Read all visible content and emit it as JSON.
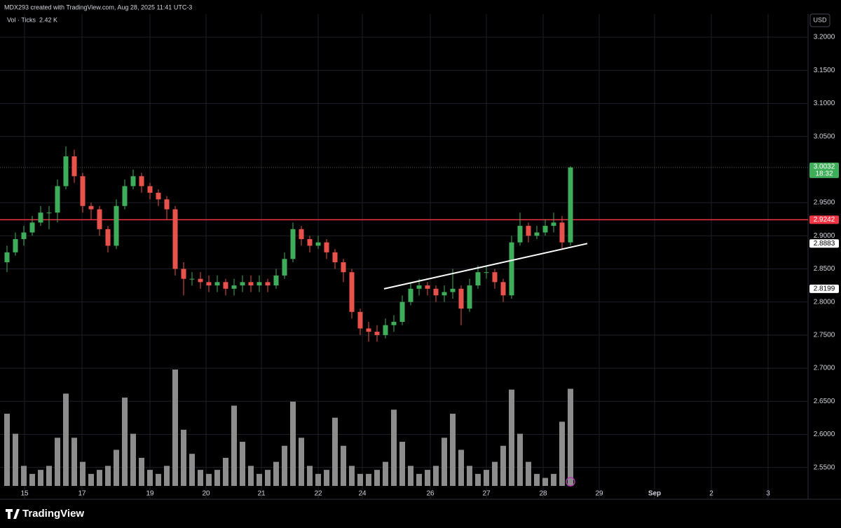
{
  "header": "MDX293 created with TradingView.com, Aug 28, 2025 11:41 UTC-3",
  "logo": "TradingView",
  "chart_data": {
    "type": "candlestick",
    "currency": "USD",
    "up_color": "#3fae5a",
    "down_color": "#e8524a",
    "ylim": [
      2.502,
      3.235
    ],
    "yticks": [
      {
        "value": 2.55,
        "label": "2.5500"
      },
      {
        "value": 2.6,
        "label": "2.6000"
      },
      {
        "value": 2.65,
        "label": "2.6500"
      },
      {
        "value": 2.7,
        "label": "2.7000"
      },
      {
        "value": 2.75,
        "label": "2.7500"
      },
      {
        "value": 2.8,
        "label": "2.8000"
      },
      {
        "value": 2.85,
        "label": "2.8500"
      },
      {
        "value": 2.9,
        "label": "2.9000"
      },
      {
        "value": 2.95,
        "label": "2.9500"
      },
      {
        "value": 3.05,
        "label": "3.0500"
      },
      {
        "value": 3.1,
        "label": "3.1000"
      },
      {
        "value": 3.15,
        "label": "3.1500"
      },
      {
        "value": 3.2,
        "label": "3.2000"
      }
    ],
    "grid": true,
    "x_labels": [
      "15",
      "17",
      "19",
      "20",
      "21",
      "22",
      "24",
      "26",
      "27",
      "28",
      "29",
      "Sep",
      "2",
      "3"
    ],
    "open": [
      2.86,
      2.875,
      2.895,
      2.905,
      2.92,
      2.935,
      2.935,
      2.975,
      3.02,
      2.99,
      2.945,
      2.94,
      2.91,
      2.885,
      2.945,
      2.975,
      2.99,
      2.975,
      2.965,
      2.955,
      2.94,
      2.85,
      2.835,
      2.835,
      2.83,
      2.825,
      2.83,
      2.82,
      2.825,
      2.83,
      2.825,
      2.83,
      2.825,
      2.84,
      2.865,
      2.91,
      2.895,
      2.885,
      2.89,
      2.875,
      2.86,
      2.845,
      2.785,
      2.76,
      2.755,
      2.75,
      2.765,
      2.77,
      2.8,
      2.82,
      2.825,
      2.82,
      2.81,
      2.815,
      2.82,
      2.79,
      2.825,
      2.845,
      2.845,
      2.83,
      2.81,
      2.89,
      2.915,
      2.9,
      2.905,
      2.915,
      2.92,
      2.89
    ],
    "high": [
      2.885,
      2.905,
      2.915,
      2.93,
      2.945,
      2.945,
      2.985,
      3.035,
      3.03,
      2.995,
      2.95,
      2.945,
      2.915,
      2.955,
      2.985,
      3.0,
      2.995,
      2.98,
      2.97,
      2.96,
      2.945,
      2.86,
      2.845,
      2.845,
      2.84,
      2.84,
      2.835,
      2.835,
      2.84,
      2.84,
      2.84,
      2.835,
      2.85,
      2.875,
      2.92,
      2.915,
      2.9,
      2.9,
      2.895,
      2.88,
      2.865,
      2.85,
      2.79,
      2.77,
      2.765,
      2.775,
      2.78,
      2.81,
      2.83,
      2.835,
      2.83,
      2.825,
      2.825,
      2.85,
      2.825,
      2.835,
      2.855,
      2.855,
      2.85,
      2.835,
      2.9,
      2.935,
      2.92,
      2.915,
      2.925,
      2.935,
      2.93,
      3.0052
    ],
    "low": [
      2.845,
      2.87,
      2.885,
      2.9,
      2.915,
      2.91,
      2.92,
      2.97,
      2.98,
      2.935,
      2.925,
      2.9,
      2.875,
      2.88,
      2.94,
      2.97,
      2.965,
      2.955,
      2.945,
      2.925,
      2.84,
      2.81,
      2.825,
      2.82,
      2.815,
      2.815,
      2.81,
      2.81,
      2.815,
      2.815,
      2.815,
      2.815,
      2.82,
      2.835,
      2.86,
      2.885,
      2.875,
      2.88,
      2.865,
      2.85,
      2.83,
      2.775,
      2.75,
      2.74,
      2.74,
      2.745,
      2.755,
      2.765,
      2.795,
      2.81,
      2.81,
      2.8,
      2.8,
      2.805,
      2.765,
      2.785,
      2.82,
      2.835,
      2.82,
      2.8,
      2.805,
      2.885,
      2.89,
      2.895,
      2.9,
      2.905,
      2.88,
      2.885
    ],
    "close": [
      2.875,
      2.895,
      2.905,
      2.92,
      2.935,
      2.935,
      2.975,
      3.02,
      2.99,
      2.945,
      2.94,
      2.91,
      2.885,
      2.945,
      2.975,
      2.99,
      2.975,
      2.965,
      2.955,
      2.94,
      2.85,
      2.835,
      2.835,
      2.83,
      2.825,
      2.83,
      2.82,
      2.825,
      2.83,
      2.825,
      2.83,
      2.825,
      2.84,
      2.865,
      2.91,
      2.895,
      2.885,
      2.89,
      2.875,
      2.86,
      2.845,
      2.785,
      2.76,
      2.755,
      2.75,
      2.765,
      2.77,
      2.8,
      2.82,
      2.825,
      2.82,
      2.81,
      2.815,
      2.82,
      2.79,
      2.825,
      2.845,
      2.845,
      2.83,
      2.81,
      2.89,
      2.915,
      2.9,
      2.905,
      2.915,
      2.92,
      2.89,
      3.0032
    ],
    "volume": {
      "name": "Vol · Ticks",
      "color": "#8c8c8c",
      "ylim": [
        0,
        2.9
      ],
      "last_value_label": "2.42 K",
      "values": [
        1.8,
        1.3,
        0.5,
        0.3,
        0.4,
        0.5,
        1.2,
        2.3,
        1.2,
        0.6,
        0.3,
        0.4,
        0.5,
        0.9,
        2.2,
        1.3,
        0.7,
        0.4,
        0.3,
        0.5,
        2.9,
        1.4,
        0.8,
        0.4,
        0.3,
        0.4,
        0.7,
        2.0,
        1.1,
        0.5,
        0.3,
        0.4,
        0.6,
        1.0,
        2.1,
        1.2,
        0.5,
        0.3,
        0.4,
        1.7,
        1.0,
        0.5,
        0.3,
        0.3,
        0.4,
        0.6,
        1.9,
        1.1,
        0.5,
        0.3,
        0.4,
        0.5,
        1.2,
        1.8,
        0.9,
        0.5,
        0.3,
        0.4,
        0.6,
        1.0,
        2.4,
        1.3,
        0.6,
        0.3,
        0.2,
        0.3,
        1.6,
        2.42
      ]
    },
    "last_price": 3.0032,
    "countdown": "18:32",
    "horizontal_line": {
      "value": 2.9242,
      "color": "#f23645"
    },
    "trendline": {
      "values": [
        2.8199,
        2.8883
      ],
      "color": "#ffffff"
    }
  }
}
